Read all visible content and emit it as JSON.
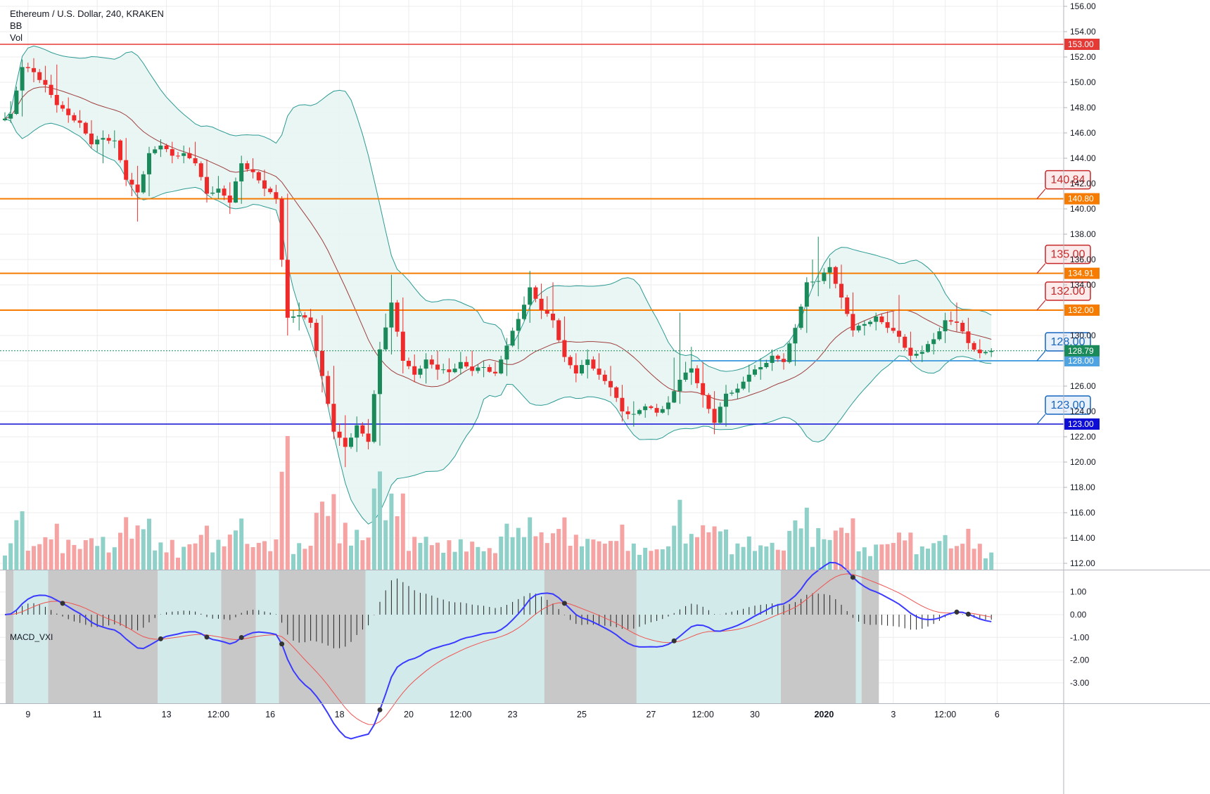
{
  "header": {
    "title": "Ethereum / U.S. Dollar, 240, KRAKEN",
    "indicator_bb": "BB",
    "indicator_vol": "Vol"
  },
  "macd_label": "MACD_VXI",
  "colors": {
    "up": "#26a69a",
    "up_body": "#1b8a5a",
    "down": "#ef2a2a",
    "orange": "#f57c00",
    "red_line": "#e53935",
    "blue_line": "#0d0dd6",
    "light_blue": "#4fa3e0",
    "bb_band": "#2b9a94",
    "bb_fill": "#e8f5f2",
    "bb_basis": "#9e3f3f",
    "macd_line": "#3b3bff",
    "signal_line": "#ef5350",
    "zone_gray": "#c8c8c8",
    "zone_teal": "#d2ebea",
    "grid": "#ececec"
  },
  "chart_data": {
    "type": "candlestick",
    "title": "Ethereum / U.S. Dollar, 240, KRAKEN",
    "price_axis": {
      "ylim": [
        111.5,
        156.5
      ],
      "ticks": [
        156,
        154,
        152,
        150,
        148,
        146,
        144,
        142,
        140,
        138,
        136,
        134,
        132,
        130,
        128,
        126,
        124,
        122,
        120,
        118,
        116,
        114,
        112
      ]
    },
    "macd_axis": {
      "ylim": [
        -3.9,
        1.95
      ],
      "ticks": [
        1.0,
        0.0,
        -1.0,
        -2.0,
        -3.0
      ]
    },
    "x_labels": [
      {
        "label": "9",
        "bar": 4,
        "bold": false
      },
      {
        "label": "11",
        "bar": 16,
        "bold": false
      },
      {
        "label": "13",
        "bar": 28,
        "bold": false
      },
      {
        "label": "12:00",
        "bar": 37,
        "bold": false
      },
      {
        "label": "16",
        "bar": 46,
        "bold": false
      },
      {
        "label": "18",
        "bar": 58,
        "bold": false
      },
      {
        "label": "20",
        "bar": 70,
        "bold": false
      },
      {
        "label": "12:00",
        "bar": 79,
        "bold": false
      },
      {
        "label": "23",
        "bar": 88,
        "bold": false
      },
      {
        "label": "25",
        "bar": 100,
        "bold": false
      },
      {
        "label": "27",
        "bar": 112,
        "bold": false
      },
      {
        "label": "12:00",
        "bar": 121,
        "bold": false
      },
      {
        "label": "30",
        "bar": 130,
        "bold": false
      },
      {
        "label": "2020",
        "bar": 142,
        "bold": true
      },
      {
        "label": "3",
        "bar": 154,
        "bold": false
      },
      {
        "label": "12:00",
        "bar": 163,
        "bold": false
      },
      {
        "label": "6",
        "bar": 172,
        "bold": false
      }
    ],
    "ohlc_anchors": [
      [
        147.0,
        148.5,
        146.8,
        147.5
      ],
      [
        147.5,
        151.8,
        147.3,
        151.2
      ],
      [
        151.2,
        151.9,
        150.0,
        150.8
      ],
      [
        150.8,
        151.3,
        149.2,
        149.8
      ],
      [
        149.8,
        151.4,
        147.6,
        148.2
      ],
      [
        148.2,
        148.8,
        146.8,
        147.4
      ],
      [
        147.4,
        147.8,
        146.4,
        146.8
      ],
      [
        146.8,
        147.0,
        144.8,
        145.1
      ],
      [
        145.1,
        146.2,
        143.6,
        145.6
      ],
      [
        145.6,
        146.2,
        144.8,
        145.4
      ],
      [
        145.4,
        145.6,
        141.8,
        142.3
      ],
      [
        142.3,
        143.4,
        139.0,
        141.3
      ],
      [
        141.3,
        144.9,
        141.0,
        144.4
      ],
      [
        144.4,
        145.5,
        144.1,
        145.0
      ],
      [
        145.0,
        145.3,
        143.6,
        144.2
      ],
      [
        144.2,
        145.0,
        143.6,
        144.4
      ],
      [
        144.4,
        145.3,
        143.4,
        143.6
      ],
      [
        143.6,
        143.9,
        140.5,
        141.2
      ],
      [
        141.2,
        142.6,
        140.8,
        141.6
      ],
      [
        141.6,
        142.1,
        139.6,
        140.5
      ],
      [
        140.5,
        144.2,
        140.4,
        143.6
      ],
      [
        143.6,
        144.0,
        142.4,
        142.9
      ],
      [
        142.9,
        143.1,
        141.0,
        141.6
      ],
      [
        141.6,
        141.9,
        140.4,
        140.8
      ],
      [
        140.8,
        141.2,
        130.0,
        131.4
      ],
      [
        131.4,
        132.6,
        130.4,
        131.6
      ],
      [
        131.6,
        132.1,
        130.6,
        131.0
      ],
      [
        131.0,
        131.6,
        125.5,
        126.8
      ],
      [
        126.8,
        127.6,
        121.8,
        122.4
      ],
      [
        122.4,
        123.7,
        119.6,
        121.2
      ],
      [
        121.2,
        123.6,
        120.8,
        122.9
      ],
      [
        122.9,
        123.4,
        121.0,
        121.6
      ],
      [
        121.6,
        129.5,
        121.3,
        128.9
      ],
      [
        128.9,
        134.8,
        128.5,
        132.6
      ],
      [
        132.6,
        133.0,
        127.0,
        128.0
      ],
      [
        128.0,
        128.5,
        126.3,
        126.9
      ],
      [
        126.9,
        128.6,
        126.2,
        128.1
      ],
      [
        128.1,
        128.8,
        126.5,
        127.3
      ],
      [
        127.3,
        128.2,
        126.3,
        127.1
      ],
      [
        127.1,
        128.7,
        126.9,
        127.9
      ],
      [
        127.9,
        128.8,
        126.8,
        127.2
      ],
      [
        127.2,
        128.0,
        126.7,
        127.5
      ],
      [
        127.5,
        127.9,
        126.8,
        127.0
      ],
      [
        127.0,
        129.8,
        126.8,
        129.2
      ],
      [
        129.2,
        131.8,
        128.9,
        131.3
      ],
      [
        131.3,
        135.1,
        131.0,
        133.8
      ],
      [
        133.8,
        134.1,
        131.3,
        132.0
      ],
      [
        132.0,
        134.2,
        130.6,
        131.2
      ],
      [
        131.2,
        131.5,
        127.9,
        128.3
      ],
      [
        128.3,
        128.6,
        126.3,
        127.0
      ],
      [
        127.0,
        128.9,
        126.6,
        128.1
      ],
      [
        128.1,
        128.6,
        126.5,
        126.9
      ],
      [
        126.9,
        127.6,
        125.2,
        125.9
      ],
      [
        125.9,
        126.1,
        123.2,
        124.0
      ],
      [
        124.0,
        124.8,
        122.8,
        123.8
      ],
      [
        123.8,
        124.6,
        123.5,
        124.4
      ],
      [
        124.4,
        124.6,
        123.6,
        123.9
      ],
      [
        123.9,
        125.2,
        123.7,
        124.7
      ],
      [
        124.7,
        131.8,
        124.6,
        126.5
      ],
      [
        126.5,
        129.1,
        126.1,
        127.4
      ],
      [
        127.4,
        127.9,
        124.3,
        125.3
      ],
      [
        125.3,
        125.6,
        122.2,
        123.1
      ],
      [
        123.1,
        126.1,
        122.8,
        125.4
      ],
      [
        125.4,
        126.2,
        125.0,
        125.8
      ],
      [
        125.8,
        127.7,
        125.5,
        126.9
      ],
      [
        126.9,
        128.2,
        126.5,
        127.5
      ],
      [
        127.5,
        128.9,
        127.2,
        128.4
      ],
      [
        128.4,
        128.6,
        127.3,
        127.9
      ],
      [
        127.9,
        130.9,
        127.6,
        130.6
      ],
      [
        130.6,
        134.6,
        130.2,
        134.2
      ],
      [
        134.2,
        137.8,
        133.1,
        134.3
      ],
      [
        134.3,
        136.1,
        133.7,
        135.4
      ],
      [
        135.4,
        135.6,
        132.1,
        133.0
      ],
      [
        133.0,
        133.4,
        129.9,
        130.4
      ],
      [
        130.4,
        131.2,
        130.0,
        130.9
      ],
      [
        130.9,
        131.8,
        130.4,
        131.5
      ],
      [
        131.5,
        131.9,
        130.2,
        130.6
      ],
      [
        130.6,
        133.2,
        129.4,
        129.9
      ],
      [
        129.9,
        130.3,
        127.9,
        128.4
      ],
      [
        128.4,
        129.2,
        127.9,
        128.7
      ],
      [
        128.7,
        130.2,
        128.5,
        129.7
      ],
      [
        129.7,
        131.8,
        129.4,
        131.2
      ],
      [
        131.2,
        132.6,
        130.3,
        131.0
      ],
      [
        131.0,
        131.4,
        128.9,
        129.4
      ],
      [
        129.4,
        129.7,
        128.2,
        128.6
      ],
      [
        128.6,
        129.0,
        128.3,
        128.79
      ]
    ],
    "bars_per_anchor": 2,
    "bb_length": 20,
    "bb_mult": 2,
    "current_price": 128.79,
    "horizontal_levels": [
      {
        "price": 153.0,
        "label": "153.00",
        "color": "#e53935",
        "width": 1.4
      },
      {
        "price": 140.8,
        "label": "140.80",
        "color": "#f57c00",
        "width": 2
      },
      {
        "price": 134.91,
        "label": "134.91",
        "color": "#f57c00",
        "width": 2
      },
      {
        "price": 132.0,
        "label": "132.00",
        "color": "#f57c00",
        "width": 2
      },
      {
        "price": 128.0,
        "label": "128.00",
        "color": "#4fa3e0",
        "width": 2,
        "start_bar": 119
      },
      {
        "price": 123.0,
        "label": "123.00",
        "color": "#0d0dd6",
        "width": 1.4
      }
    ],
    "current_price_tag": {
      "label": "128.79",
      "color": "#1b8a5a"
    },
    "price_notes": [
      {
        "text": "140.84",
        "anchor_price": 140.8,
        "style": "red"
      },
      {
        "text": "135.00",
        "anchor_price": 134.91,
        "style": "red"
      },
      {
        "text": "132.00",
        "anchor_price": 132.0,
        "style": "red"
      },
      {
        "text": "128.00",
        "anchor_price": 128.0,
        "style": "blue"
      },
      {
        "text": "123.00",
        "anchor_price": 123.0,
        "style": "blue"
      }
    ],
    "macd_zones": [
      {
        "from": 0,
        "to": 2,
        "color": "gray"
      },
      {
        "from": 2,
        "to": 8,
        "color": "teal"
      },
      {
        "from": 8,
        "to": 27,
        "color": "gray"
      },
      {
        "from": 27,
        "to": 38,
        "color": "teal"
      },
      {
        "from": 38,
        "to": 44,
        "color": "gray"
      },
      {
        "from": 44,
        "to": 48,
        "color": "teal"
      },
      {
        "from": 48,
        "to": 63,
        "color": "gray"
      },
      {
        "from": 63,
        "to": 94,
        "color": "teal"
      },
      {
        "from": 94,
        "to": 110,
        "color": "gray"
      },
      {
        "from": 110,
        "to": 135,
        "color": "teal"
      },
      {
        "from": 135,
        "to": 148,
        "color": "gray"
      },
      {
        "from": 148,
        "to": 149,
        "color": "teal"
      },
      {
        "from": 149,
        "to": 152,
        "color": "gray"
      }
    ]
  }
}
